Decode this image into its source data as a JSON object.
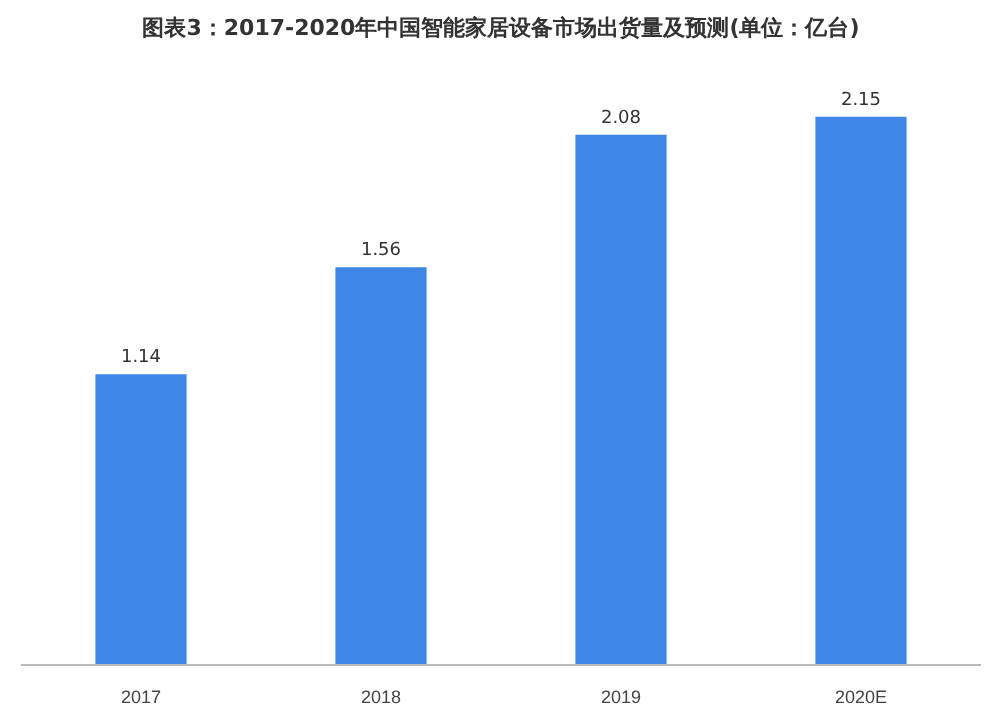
{
  "chart_data": {
    "type": "bar",
    "title": "图表3：2017-2020年中国智能家居设备市场出货量及预测(单位：亿台)",
    "categories": [
      "2017",
      "2018",
      "2019",
      "2020E"
    ],
    "values": [
      1.14,
      1.56,
      2.08,
      2.15
    ],
    "color": "#3f86e6",
    "data_labels": true
  }
}
